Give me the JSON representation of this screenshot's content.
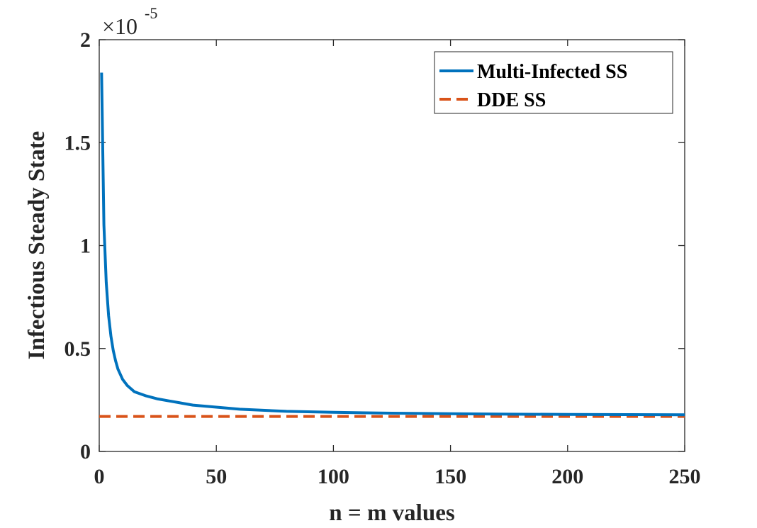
{
  "chart_data": {
    "type": "line",
    "xlabel": "n = m values",
    "ylabel": "Infectious Steady State",
    "xlim": [
      0,
      250
    ],
    "ylim": [
      0,
      2
    ],
    "y_multiplier": "×10",
    "y_exponent": "-5",
    "x_ticks": [
      "0",
      "50",
      "100",
      "150",
      "200",
      "250"
    ],
    "y_ticks": [
      "0",
      "0.5",
      "1",
      "1.5",
      "2"
    ],
    "x_tick_values": [
      0,
      50,
      100,
      150,
      200,
      250
    ],
    "y_tick_values": [
      0,
      0.5,
      1,
      1.5,
      2
    ],
    "legend_position": "top-right",
    "series": [
      {
        "name": "Multi-Infected SS",
        "color": "#0072BD",
        "style": "solid",
        "x": [
          1,
          2,
          3,
          4,
          5,
          6,
          7,
          8,
          10,
          12,
          15,
          20,
          25,
          30,
          40,
          50,
          60,
          80,
          100,
          125,
          150,
          175,
          200,
          225,
          250
        ],
        "y": [
          1.84,
          1.1,
          0.82,
          0.66,
          0.56,
          0.49,
          0.44,
          0.4,
          0.35,
          0.32,
          0.29,
          0.27,
          0.255,
          0.245,
          0.225,
          0.215,
          0.205,
          0.195,
          0.19,
          0.186,
          0.183,
          0.181,
          0.18,
          0.179,
          0.178
        ]
      },
      {
        "name": "DDE SS",
        "color": "#D95319",
        "style": "dashed",
        "x": [
          0,
          250
        ],
        "y": [
          0.17,
          0.17
        ]
      }
    ]
  }
}
